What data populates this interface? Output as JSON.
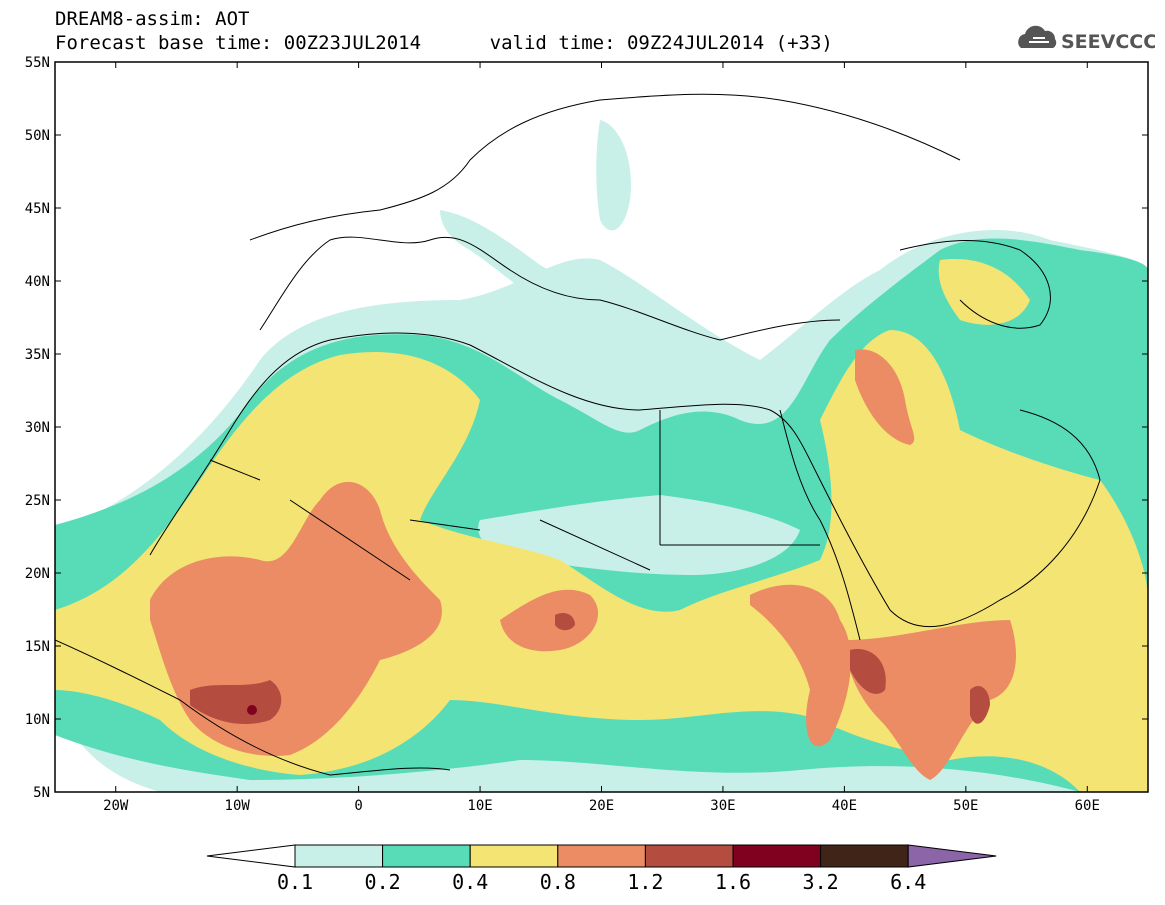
{
  "header": {
    "line1": "DREAM8-assim: AOT",
    "line2": "Forecast base time: 00Z23JUL2014      valid time: 09Z24JUL2014 (+33)"
  },
  "logo": {
    "text": "SEEVCCC",
    "icon": "cloud-icon"
  },
  "map": {
    "lat_labels": [
      "55N",
      "50N",
      "45N",
      "40N",
      "35N",
      "30N",
      "25N",
      "20N",
      "15N",
      "10N",
      "5N"
    ],
    "lon_labels": [
      "20W",
      "10W",
      "0",
      "10E",
      "20E",
      "30E",
      "40E",
      "50E",
      "60E"
    ],
    "lon_range": [
      -25,
      65
    ],
    "lat_range": [
      5,
      55
    ]
  },
  "colorbar": {
    "labels": [
      "0.1",
      "0.2",
      "0.4",
      "0.8",
      "1.2",
      "1.6",
      "3.2",
      "6.4"
    ],
    "colors": [
      "#c8f0e8",
      "#58dcb8",
      "#f4e474",
      "#ec8c64",
      "#b44c40",
      "#800020",
      "#402418",
      "#8c64a8"
    ],
    "under_color": "#ffffff"
  }
}
